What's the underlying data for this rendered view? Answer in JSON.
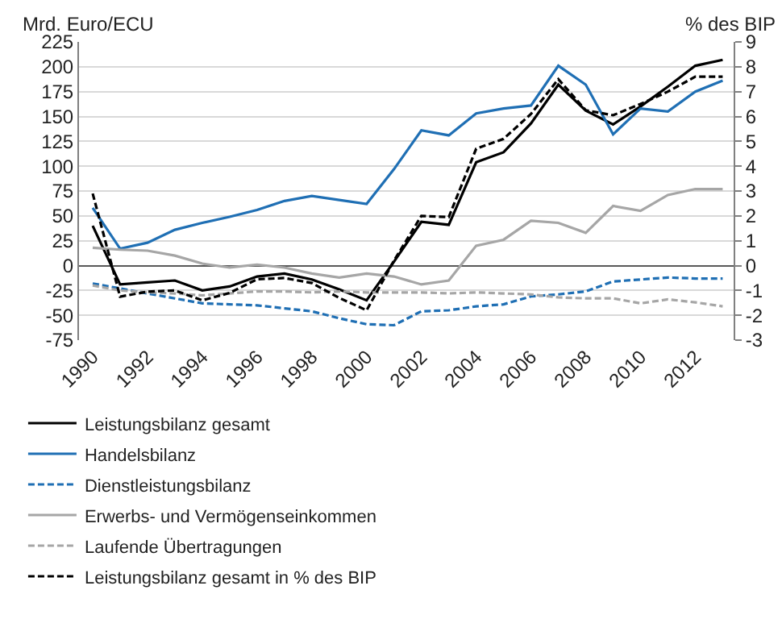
{
  "chart_data": {
    "type": "line",
    "ylabel": "Mrd. Euro/ECU",
    "y2label": "% des BIP",
    "x": [
      1990,
      1991,
      1992,
      1993,
      1994,
      1995,
      1996,
      1997,
      1998,
      1999,
      2000,
      2001,
      2002,
      2003,
      2004,
      2005,
      2006,
      2007,
      2008,
      2009,
      2010,
      2011,
      2012,
      2013
    ],
    "xlim": [
      1989.5,
      2013.4
    ],
    "xticks": [
      1990,
      1992,
      1994,
      1996,
      1998,
      2000,
      2002,
      2004,
      2006,
      2008,
      2010,
      2012
    ],
    "ylim": [
      -75,
      225
    ],
    "yticks": [
      -75,
      -50,
      -25,
      0,
      25,
      50,
      75,
      100,
      125,
      150,
      175,
      200,
      225
    ],
    "y2lim": [
      -3,
      9
    ],
    "y2ticks": [
      -3,
      -2,
      -1,
      0,
      1,
      2,
      3,
      4,
      5,
      6,
      7,
      8,
      9
    ],
    "grid": "y",
    "legend": "bottom",
    "marker": "none",
    "series": [
      {
        "name": "Leistungsbilanz gesamt",
        "color": "#000000",
        "line_style": "solid",
        "values": [
          40,
          -19,
          -17,
          -15,
          -25,
          -21,
          -11,
          -8,
          -14,
          -24,
          -35,
          4,
          44,
          41,
          104,
          114,
          143,
          182,
          156,
          142,
          160,
          180,
          201,
          207
        ]
      },
      {
        "name": "Handelsbilanz",
        "color": "#1f6fb4",
        "line_style": "solid",
        "values": [
          58,
          17,
          23,
          36,
          43,
          49,
          56,
          65,
          70,
          66,
          62,
          97,
          136,
          131,
          153,
          158,
          161,
          201,
          182,
          132,
          158,
          155,
          175,
          186
        ]
      },
      {
        "name": "Dienstleistungsbilanz",
        "color": "#1f6fb4",
        "line_style": "dashed",
        "values": [
          -18,
          -23,
          -28,
          -33,
          -38,
          -39,
          -40,
          -43,
          -46,
          -53,
          -59,
          -60,
          -46,
          -45,
          -41,
          -39,
          -31,
          -29,
          -26,
          -16,
          -14,
          -12,
          -13,
          -13
        ]
      },
      {
        "name": "Erwerbs- und Vermögenseinkommen",
        "color": "#a6a6a6",
        "line_style": "solid",
        "values": [
          18,
          16,
          15,
          10,
          2,
          -2,
          1,
          -2,
          -8,
          -12,
          -8,
          -11,
          -19,
          -15,
          20,
          26,
          45,
          43,
          33,
          60,
          55,
          71,
          77,
          77
        ]
      },
      {
        "name": "Laufende Übertragungen",
        "color": "#a6a6a6",
        "line_style": "dashed",
        "values": [
          -20,
          -25,
          -27,
          -28,
          -30,
          -28,
          -26,
          -26,
          -27,
          -26,
          -27,
          -27,
          -27,
          -28,
          -27,
          -28,
          -29,
          -32,
          -33,
          -33,
          -38,
          -34,
          -37,
          -41
        ]
      },
      {
        "name": "Leistungsbilanz gesamt in % des BIP",
        "color": "#000000",
        "line_style": "dashed",
        "axis": "y2",
        "values": [
          2.9,
          -1.25,
          -1.05,
          -1.0,
          -1.4,
          -1.1,
          -0.55,
          -0.5,
          -0.7,
          -1.3,
          -1.8,
          0.2,
          2.0,
          1.95,
          4.7,
          5.1,
          6.1,
          7.5,
          6.25,
          6.05,
          6.5,
          7.0,
          7.6,
          7.6
        ]
      }
    ]
  }
}
